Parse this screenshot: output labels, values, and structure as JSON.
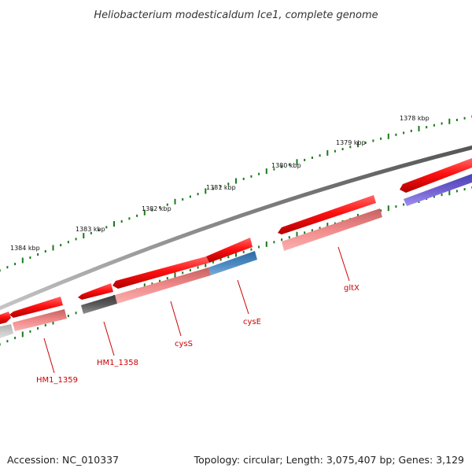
{
  "title": "Heliobacterium modesticaldum Ice1, complete genome",
  "scale_marks": [
    {
      "label": "1378 kbp"
    },
    {
      "label": "1379 kbp"
    },
    {
      "label": "1380 kbp"
    },
    {
      "label": "1381 kbp"
    },
    {
      "label": "1382 kbp"
    },
    {
      "label": "1383 kbp"
    },
    {
      "label": "1384 kbp"
    }
  ],
  "gene_labels": [
    "HM1_1359",
    "HM1_1358",
    "cysS",
    "cysE",
    "gltX"
  ],
  "footer": {
    "accession": "Accession: NC_010337",
    "stats": "Topology: circular; Length: 3,075,407 bp; Genes: 3,129"
  },
  "colors": {
    "backbone": "#7a7a7a",
    "gene_forward": "#ff1a1a",
    "cds_light": "#f08080",
    "cds_gray": "#5a5a5a",
    "cds_blue": "#4682b4",
    "cds_purple": "#7060d0",
    "tick": "#1a7a1a",
    "label": "#cc0000"
  }
}
